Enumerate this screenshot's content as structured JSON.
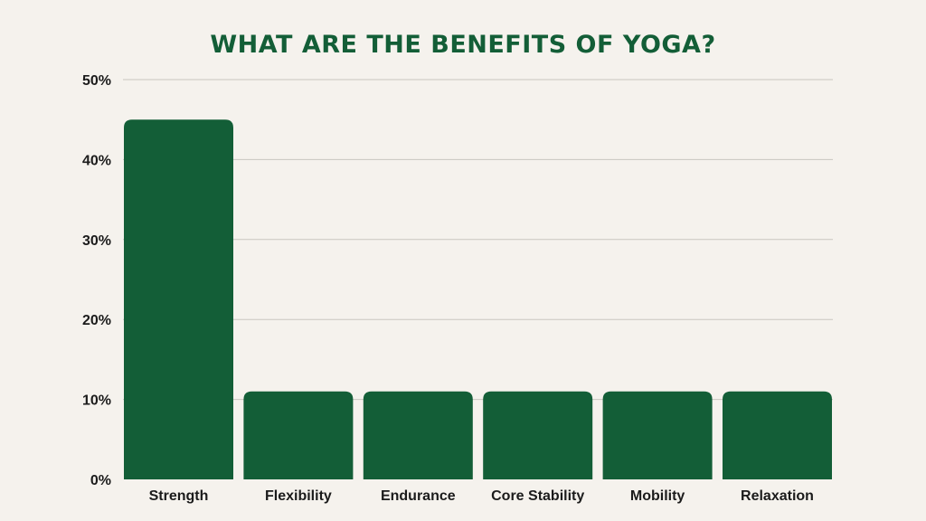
{
  "colors": {
    "background": "#f5f2ed",
    "bar": "#135e37",
    "title": "#135e37",
    "grid": "#c9c6c0",
    "text": "#1b1b1b"
  },
  "chart_data": {
    "type": "bar",
    "title": "WHAT ARE THE BENEFITS OF YOGA?",
    "xlabel": "",
    "ylabel": "",
    "categories": [
      "Strength",
      "Flexibility",
      "Endurance",
      "Core Stability",
      "Mobility",
      "Relaxation"
    ],
    "values": [
      45,
      11,
      11,
      11,
      11,
      11
    ],
    "ylim": [
      0,
      50
    ],
    "yticks": [
      0,
      10,
      20,
      30,
      40,
      50
    ],
    "ytick_labels": [
      "0%",
      "10%",
      "20%",
      "30%",
      "40%",
      "50%"
    ],
    "grid": true,
    "legend": "none"
  }
}
